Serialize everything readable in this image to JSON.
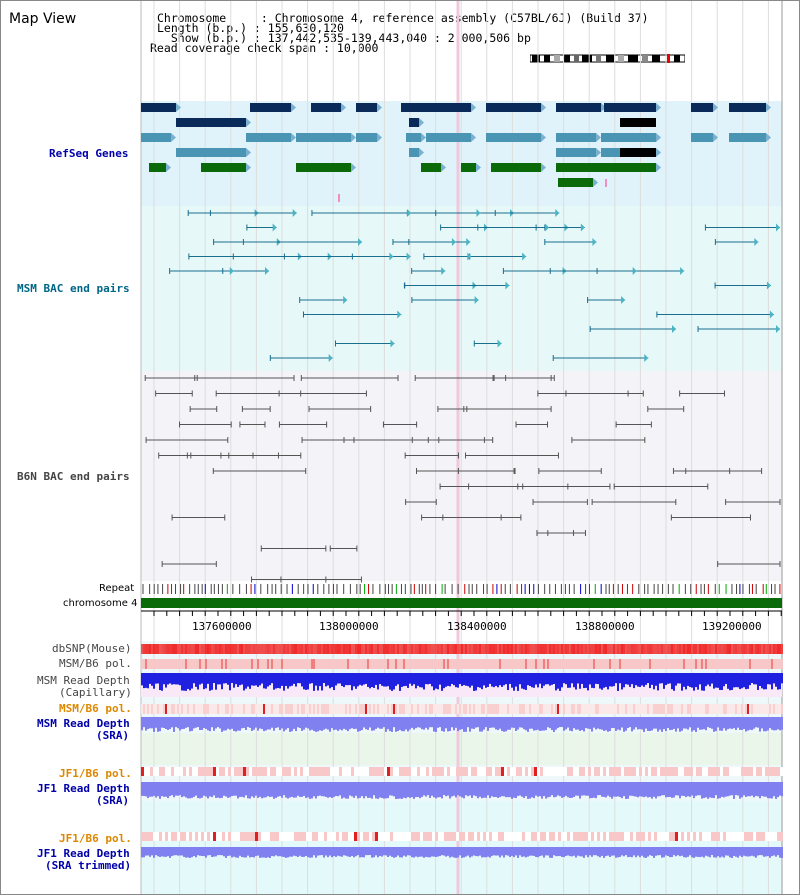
{
  "app": {
    "title": "Map View"
  },
  "header": {
    "chromosome": "Chromosome     : Chromosome 4, reference assembly (C57BL/6J) (Build 37)",
    "length": "Length (b.p.) : 155,630,120",
    "show": "  Show (b.p.) : 137,442,535-139,443,040 : 2,000,506 bp",
    "coverage": "Read coverage check span : 10,000"
  },
  "tracks": {
    "refseq": "RefSeq Genes",
    "msm_bac": "MSM BAC end pairs",
    "b6n_bac": "B6N BAC end pairs",
    "repeat": "Repeat",
    "chromosome": "chromosome 4",
    "dbsnp": "dbSNP(Mouse)",
    "msm_b6_pol_a": "MSM/B6 pol.",
    "msm_read_depth_cap_1": "MSM Read Depth",
    "msm_read_depth_cap_2": "(Capillary)",
    "msm_b6_pol_b": "MSM/B6 pol.",
    "msm_read_depth_sra_1": "MSM Read Depth",
    "msm_read_depth_sra_2": "(SRA)",
    "jf1_b6_pol_a": "JF1/B6 pol.",
    "jf1_read_depth_sra_1": "JF1 Read Depth",
    "jf1_read_depth_sra_2": "(SRA)",
    "jf1_b6_pol_b": "JF1/B6 pol.",
    "jf1_read_depth_trim_1": "JF1 Read Depth",
    "jf1_read_depth_trim_2": "(SRA trimmed)"
  },
  "ruler": {
    "ticks": [
      "137600000",
      "138000000",
      "138400000",
      "138800000",
      "139200000"
    ]
  },
  "colors": {
    "refseq_bg": "#e0f2fa",
    "msm_bg": "#e6f8f8",
    "b6n_bg": "#f4f4f8",
    "gene_navy": "#0a2a5a",
    "gene_steel": "#4a94b4",
    "gene_green": "#0a6a0a",
    "msm_line": "#1a6e8e",
    "b6n_line": "#555555",
    "chrom_green": "#0a6a0a",
    "snp_red": "#f04040",
    "depth_blue": "#2020e0",
    "depth_light": "#8080f0",
    "label_blue": "#0000aa",
    "label_teal": "#006688",
    "label_gray": "#444444",
    "label_orange": "#dd8800"
  },
  "icons": {
    "ideogram": "chromosome-ideogram"
  }
}
